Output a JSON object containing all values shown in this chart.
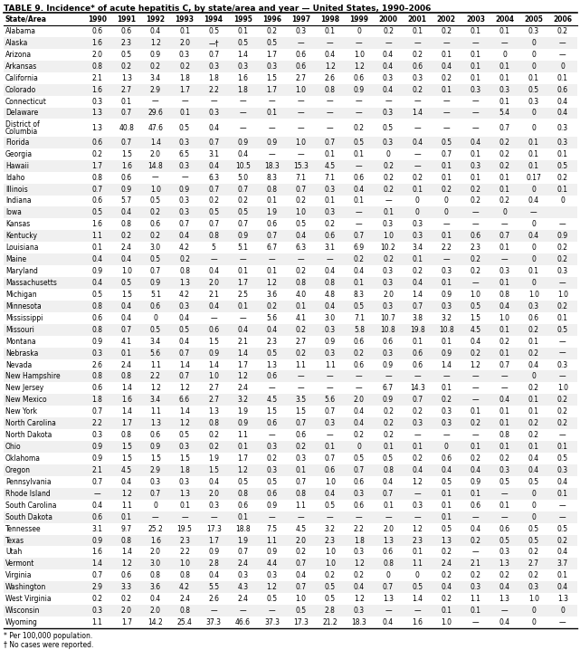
{
  "title": "TABLE 9. Incidence* of acute hepatitis C, by state/area and year — United States, 1990–2006",
  "headers": [
    "State/Area",
    "1990",
    "1991",
    "1992",
    "1993",
    "1994",
    "1995",
    "1996",
    "1997",
    "1998",
    "1999",
    "2000",
    "2001",
    "2002",
    "2003",
    "2004",
    "2005",
    "2006"
  ],
  "rows": [
    [
      "Alabama",
      "0.6",
      "0.6",
      "0.4",
      "0.1",
      "0.5",
      "0.1",
      "0.2",
      "0.3",
      "0.1",
      "0",
      "0.2",
      "0.1",
      "0.2",
      "0.1",
      "0.1",
      "0.3",
      "0.2"
    ],
    [
      "Alaska",
      "1.6",
      "2.3",
      "1.2",
      "2.0",
      "—†",
      "0.5",
      "0.5",
      "—",
      "—",
      "—",
      "—",
      "—",
      "—",
      "—",
      "—",
      "0",
      "—"
    ],
    [
      "Arizona",
      "2.0",
      "0.5",
      "0.9",
      "0.3",
      "0.7",
      "1.4",
      "1.7",
      "0.6",
      "0.4",
      "1.0",
      "0.4",
      "0.2",
      "0.1",
      "0.1",
      "0",
      "0",
      "—"
    ],
    [
      "Arkansas",
      "0.8",
      "0.2",
      "0.2",
      "0.2",
      "0.3",
      "0.3",
      "0.3",
      "0.6",
      "1.2",
      "1.2",
      "0.4",
      "0.6",
      "0.4",
      "0.1",
      "0.1",
      "0",
      "0"
    ],
    [
      "California",
      "2.1",
      "1.3",
      "3.4",
      "1.8",
      "1.8",
      "1.6",
      "1.5",
      "2.7",
      "2.6",
      "0.6",
      "0.3",
      "0.3",
      "0.2",
      "0.1",
      "0.1",
      "0.1",
      "0.1"
    ],
    [
      "Colorado",
      "1.6",
      "2.7",
      "2.9",
      "1.7",
      "2.2",
      "1.8",
      "1.7",
      "1.0",
      "0.8",
      "0.9",
      "0.4",
      "0.2",
      "0.1",
      "0.3",
      "0.3",
      "0.5",
      "0.6"
    ],
    [
      "Connecticut",
      "0.3",
      "0.1",
      "—",
      "—",
      "—",
      "—",
      "—",
      "—",
      "—",
      "—",
      "—",
      "—",
      "—",
      "—",
      "0.1",
      "0.3",
      "0.4"
    ],
    [
      "Delaware",
      "1.3",
      "0.7",
      "29.6",
      "0.1",
      "0.3",
      "—",
      "0.1",
      "—",
      "—",
      "—",
      "0.3",
      "1.4",
      "—",
      "—",
      "5.4",
      "0",
      "0.4"
    ],
    [
      "District of\nColumbia",
      "1.3",
      "40.8",
      "47.6",
      "0.5",
      "0.4",
      "—",
      "—",
      "—",
      "—",
      "0.2",
      "0.5",
      "—",
      "—",
      "—",
      "0.7",
      "0",
      "0.3"
    ],
    [
      "Florida",
      "0.6",
      "0.7",
      "1.4",
      "0.3",
      "0.7",
      "0.9",
      "0.9",
      "1.0",
      "0.7",
      "0.5",
      "0.3",
      "0.4",
      "0.5",
      "0.4",
      "0.2",
      "0.1",
      "0.3"
    ],
    [
      "Georgia",
      "0.2",
      "1.5",
      "2.0",
      "6.5",
      "3.1",
      "0.4",
      "—",
      "—",
      "0.1",
      "0.1",
      "0",
      "—",
      "0.7",
      "0.1",
      "0.2",
      "0.1",
      "0.1"
    ],
    [
      "Hawaii",
      "1.7",
      "1.6",
      "14.8",
      "0.3",
      "0.4",
      "10.5",
      "18.3",
      "15.3",
      "4.5",
      "—",
      "0.2",
      "—",
      "0.1",
      "0.3",
      "0.2",
      "0.1",
      "0.5"
    ],
    [
      "Idaho",
      "0.8",
      "0.6",
      "—",
      "—",
      "6.3",
      "5.0",
      "8.3",
      "7.1",
      "7.1",
      "0.6",
      "0.2",
      "0.2",
      "0.1",
      "0.1",
      "0.1",
      "0.17",
      "0.2"
    ],
    [
      "Illinois",
      "0.7",
      "0.9",
      "1.0",
      "0.9",
      "0.7",
      "0.7",
      "0.8",
      "0.7",
      "0.3",
      "0.4",
      "0.2",
      "0.1",
      "0.2",
      "0.2",
      "0.1",
      "0",
      "0.1"
    ],
    [
      "Indiana",
      "0.6",
      "5.7",
      "0.5",
      "0.3",
      "0.2",
      "0.2",
      "0.1",
      "0.2",
      "0.1",
      "0.1",
      "—",
      "0",
      "0",
      "0.2",
      "0.2",
      "0.4",
      "0"
    ],
    [
      "Iowa",
      "0.5",
      "0.4",
      "0.2",
      "0.3",
      "0.5",
      "0.5",
      "1.9",
      "1.0",
      "0.3",
      "—",
      "0.1",
      "0",
      "0",
      "—",
      "0",
      "—",
      ""
    ],
    [
      "Kansas",
      "1.6",
      "0.8",
      "0.6",
      "0.7",
      "0.7",
      "0.7",
      "0.6",
      "0.5",
      "0.2",
      "—",
      "0.3",
      "0.3",
      "—",
      "—",
      "—",
      "0",
      "—"
    ],
    [
      "Kentucky",
      "1.1",
      "0.2",
      "0.2",
      "0.4",
      "0.8",
      "0.9",
      "0.7",
      "0.4",
      "0.6",
      "0.7",
      "1.0",
      "0.3",
      "0.1",
      "0.6",
      "0.7",
      "0.4",
      "0.9"
    ],
    [
      "Louisiana",
      "0.1",
      "2.4",
      "3.0",
      "4.2",
      "5",
      "5.1",
      "6.7",
      "6.3",
      "3.1",
      "6.9",
      "10.2",
      "3.4",
      "2.2",
      "2.3",
      "0.1",
      "0",
      "0.2"
    ],
    [
      "Maine",
      "0.4",
      "0.4",
      "0.5",
      "0.2",
      "—",
      "—",
      "—",
      "—",
      "—",
      "0.2",
      "0.2",
      "0.1",
      "—",
      "0.2",
      "—",
      "0",
      "0.2"
    ],
    [
      "Maryland",
      "0.9",
      "1.0",
      "0.7",
      "0.8",
      "0.4",
      "0.1",
      "0.1",
      "0.2",
      "0.4",
      "0.4",
      "0.3",
      "0.2",
      "0.3",
      "0.2",
      "0.3",
      "0.1",
      "0.3"
    ],
    [
      "Massachusetts",
      "0.4",
      "0.5",
      "0.9",
      "1.3",
      "2.0",
      "1.7",
      "1.2",
      "0.8",
      "0.8",
      "0.1",
      "0.3",
      "0.4",
      "0.1",
      "—",
      "0.1",
      "0",
      "—"
    ],
    [
      "Michigan",
      "0.5",
      "1.5",
      "5.1",
      "4.2",
      "2.1",
      "2.5",
      "3.6",
      "4.0",
      "4.8",
      "8.3",
      "2.0",
      "1.4",
      "0.9",
      "1.0",
      "0.8",
      "1.0",
      "1.0"
    ],
    [
      "Minnesota",
      "0.8",
      "0.4",
      "0.6",
      "0.3",
      "0.4",
      "0.1",
      "0.2",
      "0.1",
      "0.4",
      "0.5",
      "0.3",
      "0.7",
      "0.3",
      "0.5",
      "0.4",
      "0.3",
      "0.2"
    ],
    [
      "Mississippi",
      "0.6",
      "0.4",
      "0",
      "0.4",
      "—",
      "—",
      "5.6",
      "4.1",
      "3.0",
      "7.1",
      "10.7",
      "3.8",
      "3.2",
      "1.5",
      "1.0",
      "0.6",
      "0.1"
    ],
    [
      "Missouri",
      "0.8",
      "0.7",
      "0.5",
      "0.5",
      "0.6",
      "0.4",
      "0.4",
      "0.2",
      "0.3",
      "5.8",
      "10.8",
      "19.8",
      "10.8",
      "4.5",
      "0.1",
      "0.2",
      "0.5"
    ],
    [
      "Montana",
      "0.9",
      "4.1",
      "3.4",
      "0.4",
      "1.5",
      "2.1",
      "2.3",
      "2.7",
      "0.9",
      "0.6",
      "0.6",
      "0.1",
      "0.1",
      "0.4",
      "0.2",
      "0.1",
      "—"
    ],
    [
      "Nebraska",
      "0.3",
      "0.1",
      "5.6",
      "0.7",
      "0.9",
      "1.4",
      "0.5",
      "0.2",
      "0.3",
      "0.2",
      "0.3",
      "0.6",
      "0.9",
      "0.2",
      "0.1",
      "0.2",
      "—"
    ],
    [
      "Nevada",
      "2.6",
      "2.4",
      "1.1",
      "1.4",
      "1.4",
      "1.7",
      "1.3",
      "1.1",
      "1.1",
      "0.6",
      "0.9",
      "0.6",
      "1.4",
      "1.2",
      "0.7",
      "0.4",
      "0.3"
    ],
    [
      "New Hampshire",
      "0.8",
      "0.8",
      "2.2",
      "0.7",
      "1.0",
      "1.2",
      "0.6",
      "—",
      "—",
      "—",
      "—",
      "—",
      "—",
      "—",
      "—",
      "0",
      "—"
    ],
    [
      "New Jersey",
      "0.6",
      "1.4",
      "1.2",
      "1.2",
      "2.7",
      "2.4",
      "—",
      "—",
      "—",
      "—",
      "6.7",
      "14.3",
      "0.1",
      "—",
      "—",
      "0.2",
      "1.0"
    ],
    [
      "New Mexico",
      "1.8",
      "1.6",
      "3.4",
      "6.6",
      "2.7",
      "3.2",
      "4.5",
      "3.5",
      "5.6",
      "2.0",
      "0.9",
      "0.7",
      "0.2",
      "—",
      "0.4",
      "0.1",
      "0.2"
    ],
    [
      "New York",
      "0.7",
      "1.4",
      "1.1",
      "1.4",
      "1.3",
      "1.9",
      "1.5",
      "1.5",
      "0.7",
      "0.4",
      "0.2",
      "0.2",
      "0.3",
      "0.1",
      "0.1",
      "0.1",
      "0.2"
    ],
    [
      "North Carolina",
      "2.2",
      "1.7",
      "1.3",
      "1.2",
      "0.8",
      "0.9",
      "0.6",
      "0.7",
      "0.3",
      "0.4",
      "0.2",
      "0.3",
      "0.3",
      "0.2",
      "0.1",
      "0.2",
      "0.2"
    ],
    [
      "North Dakota",
      "0.3",
      "0.8",
      "0.6",
      "0.5",
      "0.2",
      "1.1",
      "—",
      "0.6",
      "—",
      "0.2",
      "0.2",
      "—",
      "—",
      "—",
      "0.8",
      "0.2",
      "—"
    ],
    [
      "Ohio",
      "0.9",
      "1.5",
      "0.9",
      "0.3",
      "0.2",
      "0.1",
      "0.3",
      "0.2",
      "0.1",
      "0",
      "0.1",
      "0.1",
      "0",
      "0.1",
      "0.1",
      "0.1",
      "0.1"
    ],
    [
      "Oklahoma",
      "0.9",
      "1.5",
      "1.5",
      "1.5",
      "1.9",
      "1.7",
      "0.2",
      "0.3",
      "0.7",
      "0.5",
      "0.5",
      "0.2",
      "0.6",
      "0.2",
      "0.2",
      "0.4",
      "0.5"
    ],
    [
      "Oregon",
      "2.1",
      "4.5",
      "2.9",
      "1.8",
      "1.5",
      "1.2",
      "0.3",
      "0.1",
      "0.6",
      "0.7",
      "0.8",
      "0.4",
      "0.4",
      "0.4",
      "0.3",
      "0.4",
      "0.3"
    ],
    [
      "Pennsylvania",
      "0.7",
      "0.4",
      "0.3",
      "0.3",
      "0.4",
      "0.5",
      "0.5",
      "0.7",
      "1.0",
      "0.6",
      "0.4",
      "1.2",
      "0.5",
      "0.9",
      "0.5",
      "0.5",
      "0.4"
    ],
    [
      "Rhode Island",
      "—",
      "1.2",
      "0.7",
      "1.3",
      "2.0",
      "0.8",
      "0.6",
      "0.8",
      "0.4",
      "0.3",
      "0.7",
      "—",
      "0.1",
      "0.1",
      "—",
      "0",
      "0.1"
    ],
    [
      "South Carolina",
      "0.4",
      "1.1",
      "0",
      "0.1",
      "0.3",
      "0.6",
      "0.9",
      "1.1",
      "0.5",
      "0.6",
      "0.1",
      "0.3",
      "0.1",
      "0.6",
      "0.1",
      "0",
      "—"
    ],
    [
      "South Dakota",
      "0.6",
      "0.1",
      "—",
      "—",
      "—",
      "0.1",
      "—",
      "—",
      "—",
      "—",
      "—",
      "—",
      "0.1",
      "—",
      "—",
      "0",
      "—"
    ],
    [
      "Tennessee",
      "3.1",
      "9.7",
      "25.2",
      "19.5",
      "17.3",
      "18.8",
      "7.5",
      "4.5",
      "3.2",
      "2.2",
      "2.0",
      "1.2",
      "0.5",
      "0.4",
      "0.6",
      "0.5",
      "0.5"
    ],
    [
      "Texas",
      "0.9",
      "0.8",
      "1.6",
      "2.3",
      "1.7",
      "1.9",
      "1.1",
      "2.0",
      "2.3",
      "1.8",
      "1.3",
      "2.3",
      "1.3",
      "0.2",
      "0.5",
      "0.5",
      "0.2"
    ],
    [
      "Utah",
      "1.6",
      "1.4",
      "2.0",
      "2.2",
      "0.9",
      "0.7",
      "0.9",
      "0.2",
      "1.0",
      "0.3",
      "0.6",
      "0.1",
      "0.2",
      "—",
      "0.3",
      "0.2",
      "0.4"
    ],
    [
      "Vermont",
      "1.4",
      "1.2",
      "3.0",
      "1.0",
      "2.8",
      "2.4",
      "4.4",
      "0.7",
      "1.0",
      "1.2",
      "0.8",
      "1.1",
      "2.4",
      "2.1",
      "1.3",
      "2.7",
      "3.7"
    ],
    [
      "Virginia",
      "0.7",
      "0.6",
      "0.8",
      "0.8",
      "0.4",
      "0.3",
      "0.3",
      "0.4",
      "0.2",
      "0.2",
      "0",
      "0",
      "0.2",
      "0.2",
      "0.2",
      "0.2",
      "0.1"
    ],
    [
      "Washington",
      "2.9",
      "3.3",
      "3.6",
      "4.2",
      "5.5",
      "4.3",
      "1.2",
      "0.7",
      "0.5",
      "0.4",
      "0.7",
      "0.5",
      "0.4",
      "0.3",
      "0.4",
      "0.3",
      "0.4"
    ],
    [
      "West Virginia",
      "0.2",
      "0.2",
      "0.4",
      "2.4",
      "2.6",
      "2.4",
      "0.5",
      "1.0",
      "0.5",
      "1.2",
      "1.3",
      "1.4",
      "0.2",
      "1.1",
      "1.3",
      "1.0",
      "1.3"
    ],
    [
      "Wisconsin",
      "0.3",
      "2.0",
      "2.0",
      "0.8",
      "—",
      "—",
      "—",
      "0.5",
      "2.8",
      "0.3",
      "—",
      "—",
      "0.1",
      "0.1",
      "—",
      "0",
      "0"
    ],
    [
      "Wyoming",
      "1.1",
      "1.7",
      "14.2",
      "25.4",
      "37.3",
      "46.6",
      "37.3",
      "17.3",
      "21.2",
      "18.3",
      "0.4",
      "1.6",
      "1.0",
      "—",
      "0.4",
      "0",
      "—"
    ]
  ],
  "footnote1": "* Per 100,000 population.",
  "footnote2": "† No cases were reported.",
  "font_size": 5.5,
  "header_font_size": 5.5,
  "title_fontsize": 6.5
}
